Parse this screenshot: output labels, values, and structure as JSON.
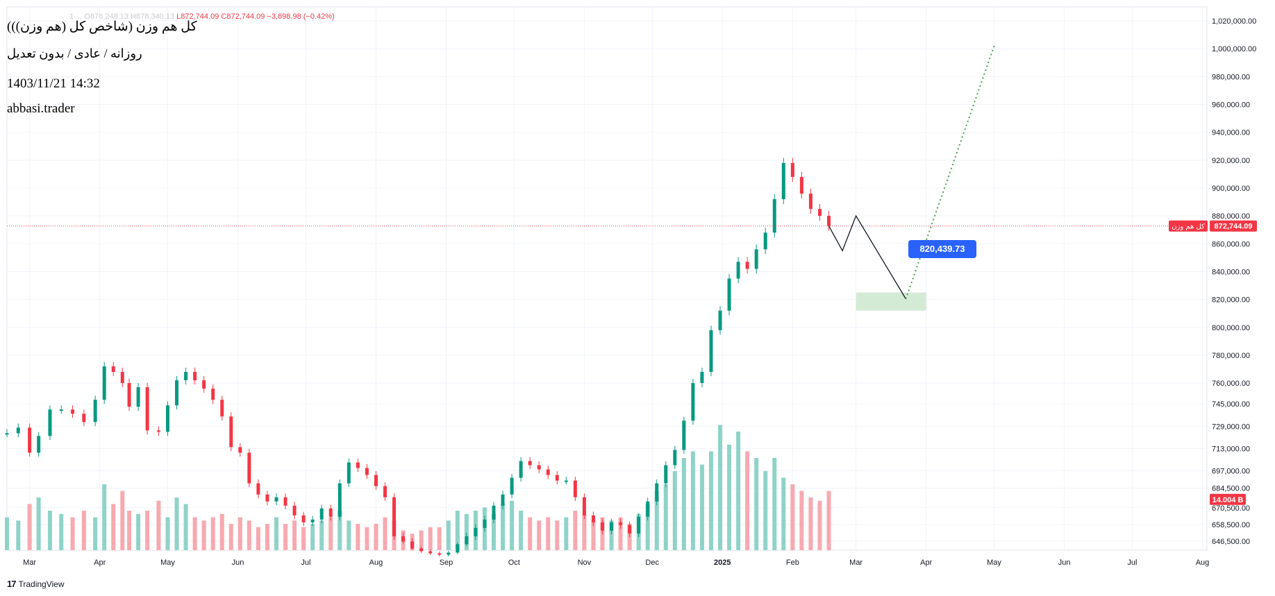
{
  "legend": {
    "symbol_faded": "1 ...",
    "open_faded": "O876,248.13",
    "high_faded": "H878,340.13",
    "low": "L872,744.09",
    "close": "C872,744.09",
    "change": "−3,698.98 (−0.42%)"
  },
  "title": "(کل هم وزن (شاخص کل (هم وزن))",
  "subtitle": "روزانه / عادی / بدون تعدیل",
  "timestamp": "1403/11/21 14:32",
  "author": "abbasi.trader",
  "attribution": "TradingView",
  "colors": {
    "up": "#089981",
    "down": "#f23645",
    "vol_up": "#8fd3c8",
    "vol_down": "#f7a9b0",
    "projection": "#2962ff",
    "zone": "#c8e6c9"
  },
  "chart_data": {
    "type": "candlestick",
    "symbol_label": "کل هم وزن",
    "current_price": "872,744.09",
    "volume_label": "14.004 B",
    "target_label": "820,439.73",
    "y_ticks": [
      646500,
      658500,
      670500,
      684500,
      697000,
      713000,
      729000,
      745000,
      760000,
      780000,
      800000,
      820000,
      840000,
      860000,
      880000,
      900000,
      920000,
      940000,
      960000,
      980000,
      1000000,
      1020000
    ],
    "y_tick_labels": [
      "646,500.00",
      "658,500.00",
      "670,500.00",
      "684,500.00",
      "697,000.00",
      "713,000.00",
      "729,000.00",
      "745,000.00",
      "760,000.00",
      "780,000.00",
      "800,000.00",
      "820,000.00",
      "840,000.00",
      "860,000.00",
      "880,000.00",
      "900,000.00",
      "920,000.00",
      "940,000.00",
      "960,000.00",
      "980,000.00",
      "1,000,000.00",
      "1,020,000.00"
    ],
    "x_labels": [
      "Mar",
      "Apr",
      "May",
      "Jun",
      "Jul",
      "Aug",
      "Sep",
      "Oct",
      "Nov",
      "Dec",
      "2025",
      "Feb",
      "Mar",
      "Apr",
      "May",
      "Jun",
      "Jul",
      "Aug"
    ],
    "x_label_dates": [
      "2024-03-01",
      "2024-04-01",
      "2024-05-01",
      "2024-06-01",
      "2024-07-01",
      "2024-08-01",
      "2024-09-01",
      "2024-10-01",
      "2024-11-01",
      "2024-12-01",
      "2025-01-01",
      "2025-02-01",
      "2025-03-01",
      "2025-04-01",
      "2025-05-01",
      "2025-06-01",
      "2025-07-01",
      "2025-08-01"
    ],
    "x_range": [
      "2024-02-20",
      "2025-08-03"
    ],
    "close_series": [
      [
        "2024-02-20",
        724000
      ],
      [
        "2024-02-25",
        728000
      ],
      [
        "2024-03-01",
        710000
      ],
      [
        "2024-03-05",
        722000
      ],
      [
        "2024-03-10",
        741000
      ],
      [
        "2024-03-15",
        741000
      ],
      [
        "2024-03-20",
        738000
      ],
      [
        "2024-03-25",
        732000
      ],
      [
        "2024-03-30",
        748000
      ],
      [
        "2024-04-03",
        772000
      ],
      [
        "2024-04-07",
        768000
      ],
      [
        "2024-04-11",
        760000
      ],
      [
        "2024-04-14",
        743000
      ],
      [
        "2024-04-18",
        757000
      ],
      [
        "2024-04-22",
        726000
      ],
      [
        "2024-04-27",
        725000
      ],
      [
        "2024-05-01",
        744000
      ],
      [
        "2024-05-05",
        762000
      ],
      [
        "2024-05-09",
        768000
      ],
      [
        "2024-05-13",
        762000
      ],
      [
        "2024-05-17",
        756000
      ],
      [
        "2024-05-21",
        748000
      ],
      [
        "2024-05-25",
        736000
      ],
      [
        "2024-05-29",
        714000
      ],
      [
        "2024-06-02",
        710000
      ],
      [
        "2024-06-06",
        688000
      ],
      [
        "2024-06-10",
        680000
      ],
      [
        "2024-06-14",
        675000
      ],
      [
        "2024-06-18",
        678000
      ],
      [
        "2024-06-22",
        672000
      ],
      [
        "2024-06-26",
        665000
      ],
      [
        "2024-06-30",
        660000
      ],
      [
        "2024-07-04",
        662000
      ],
      [
        "2024-07-08",
        670000
      ],
      [
        "2024-07-12",
        664000
      ],
      [
        "2024-07-16",
        688000
      ],
      [
        "2024-07-20",
        703000
      ],
      [
        "2024-07-24",
        699000
      ],
      [
        "2024-07-28",
        694000
      ],
      [
        "2024-08-01",
        686000
      ],
      [
        "2024-08-05",
        678000
      ],
      [
        "2024-08-09",
        650000
      ],
      [
        "2024-08-13",
        646000
      ],
      [
        "2024-08-17",
        636000
      ],
      [
        "2024-08-21",
        632000
      ],
      [
        "2024-08-25",
        629000
      ],
      [
        "2024-08-29",
        627000
      ],
      [
        "2024-09-02",
        630000
      ],
      [
        "2024-09-06",
        642000
      ],
      [
        "2024-09-10",
        650000
      ],
      [
        "2024-09-14",
        656000
      ],
      [
        "2024-09-18",
        662000
      ],
      [
        "2024-09-22",
        672000
      ],
      [
        "2024-09-26",
        680000
      ],
      [
        "2024-09-30",
        692000
      ],
      [
        "2024-10-04",
        704000
      ],
      [
        "2024-10-08",
        701000
      ],
      [
        "2024-10-12",
        698000
      ],
      [
        "2024-10-16",
        694000
      ],
      [
        "2024-10-20",
        690000
      ],
      [
        "2024-10-24",
        690000
      ],
      [
        "2024-10-28",
        678000
      ],
      [
        "2024-11-01",
        665000
      ],
      [
        "2024-11-05",
        660000
      ],
      [
        "2024-11-09",
        654000
      ],
      [
        "2024-11-13",
        660000
      ],
      [
        "2024-11-17",
        658000
      ],
      [
        "2024-11-21",
        652000
      ],
      [
        "2024-11-25",
        664000
      ],
      [
        "2024-11-29",
        675000
      ],
      [
        "2024-12-03",
        688000
      ],
      [
        "2024-12-07",
        701000
      ],
      [
        "2024-12-11",
        712000
      ],
      [
        "2024-12-15",
        733000
      ],
      [
        "2024-12-19",
        760000
      ],
      [
        "2024-12-23",
        768000
      ],
      [
        "2024-12-27",
        798000
      ],
      [
        "2024-12-31",
        812000
      ],
      [
        "2025-01-04",
        835000
      ],
      [
        "2025-01-08",
        847000
      ],
      [
        "2025-01-12",
        842000
      ],
      [
        "2025-01-16",
        856000
      ],
      [
        "2025-01-20",
        868000
      ],
      [
        "2025-01-24",
        892000
      ],
      [
        "2025-01-28",
        918000
      ],
      [
        "2025-02-01",
        908000
      ],
      [
        "2025-02-05",
        896000
      ],
      [
        "2025-02-09",
        885000
      ],
      [
        "2025-02-13",
        880000
      ],
      [
        "2025-02-17",
        872744
      ]
    ],
    "volume_series": [
      [
        "2024-02-20",
        0.5
      ],
      [
        "2024-02-25",
        0.45
      ],
      [
        "2024-03-01",
        0.7
      ],
      [
        "2024-03-05",
        0.8
      ],
      [
        "2024-03-10",
        0.6
      ],
      [
        "2024-03-15",
        0.55
      ],
      [
        "2024-03-20",
        0.5
      ],
      [
        "2024-03-25",
        0.6
      ],
      [
        "2024-03-30",
        0.5
      ],
      [
        "2024-04-03",
        1.0
      ],
      [
        "2024-04-07",
        0.7
      ],
      [
        "2024-04-11",
        0.9
      ],
      [
        "2024-04-14",
        0.6
      ],
      [
        "2024-04-18",
        0.55
      ],
      [
        "2024-04-22",
        0.6
      ],
      [
        "2024-04-27",
        0.75
      ],
      [
        "2024-05-01",
        0.5
      ],
      [
        "2024-05-05",
        0.8
      ],
      [
        "2024-05-09",
        0.7
      ],
      [
        "2024-05-13",
        0.5
      ],
      [
        "2024-05-17",
        0.45
      ],
      [
        "2024-05-21",
        0.5
      ],
      [
        "2024-05-25",
        0.55
      ],
      [
        "2024-05-29",
        0.4
      ],
      [
        "2024-06-02",
        0.5
      ],
      [
        "2024-06-06",
        0.45
      ],
      [
        "2024-06-10",
        0.35
      ],
      [
        "2024-06-14",
        0.4
      ],
      [
        "2024-06-18",
        0.5
      ],
      [
        "2024-06-22",
        0.4
      ],
      [
        "2024-06-26",
        0.45
      ],
      [
        "2024-06-30",
        0.35
      ],
      [
        "2024-07-04",
        0.4
      ],
      [
        "2024-07-08",
        0.45
      ],
      [
        "2024-07-12",
        0.5
      ],
      [
        "2024-07-16",
        0.6
      ],
      [
        "2024-07-20",
        0.45
      ],
      [
        "2024-07-24",
        0.4
      ],
      [
        "2024-07-28",
        0.35
      ],
      [
        "2024-08-01",
        0.4
      ],
      [
        "2024-08-05",
        0.5
      ],
      [
        "2024-08-09",
        0.45
      ],
      [
        "2024-08-13",
        0.3
      ],
      [
        "2024-08-17",
        0.25
      ],
      [
        "2024-08-21",
        0.3
      ],
      [
        "2024-08-25",
        0.35
      ],
      [
        "2024-08-29",
        0.35
      ],
      [
        "2024-09-02",
        0.45
      ],
      [
        "2024-09-06",
        0.6
      ],
      [
        "2024-09-10",
        0.55
      ],
      [
        "2024-09-14",
        0.6
      ],
      [
        "2024-09-18",
        0.65
      ],
      [
        "2024-09-22",
        0.55
      ],
      [
        "2024-09-26",
        0.7
      ],
      [
        "2024-09-30",
        0.75
      ],
      [
        "2024-10-04",
        0.6
      ],
      [
        "2024-10-08",
        0.5
      ],
      [
        "2024-10-12",
        0.45
      ],
      [
        "2024-10-16",
        0.5
      ],
      [
        "2024-10-20",
        0.45
      ],
      [
        "2024-10-24",
        0.5
      ],
      [
        "2024-10-28",
        0.6
      ],
      [
        "2024-11-01",
        0.55
      ],
      [
        "2024-11-05",
        0.45
      ],
      [
        "2024-11-09",
        0.5
      ],
      [
        "2024-11-13",
        0.45
      ],
      [
        "2024-11-17",
        0.5
      ],
      [
        "2024-11-21",
        0.4
      ],
      [
        "2024-11-25",
        0.55
      ],
      [
        "2024-11-29",
        0.7
      ],
      [
        "2024-12-03",
        0.9
      ],
      [
        "2024-12-07",
        1.0
      ],
      [
        "2024-12-11",
        1.2
      ],
      [
        "2024-12-15",
        1.4
      ],
      [
        "2024-12-19",
        1.5
      ],
      [
        "2024-12-23",
        1.3
      ],
      [
        "2024-12-27",
        1.5
      ],
      [
        "2024-12-31",
        1.9
      ],
      [
        "2025-01-04",
        1.6
      ],
      [
        "2025-01-08",
        1.8
      ],
      [
        "2025-01-12",
        1.5
      ],
      [
        "2025-01-16",
        1.4
      ],
      [
        "2025-01-20",
        1.2
      ],
      [
        "2025-01-24",
        1.4
      ],
      [
        "2025-01-28",
        1.1
      ],
      [
        "2025-02-01",
        1.0
      ],
      [
        "2025-02-05",
        0.9
      ],
      [
        "2025-02-09",
        0.8
      ],
      [
        "2025-02-13",
        0.75
      ],
      [
        "2025-02-17",
        0.9
      ]
    ],
    "projection_path": [
      [
        "2025-02-17",
        872744
      ],
      [
        "2025-02-23",
        855000
      ],
      [
        "2025-03-01",
        880000
      ],
      [
        "2025-03-23",
        820440
      ]
    ],
    "target_path": [
      [
        "2025-03-23",
        820440
      ],
      [
        "2025-05-01",
        1002000
      ]
    ],
    "target_zone": {
      "x0": "2025-03-01",
      "x1": "2025-04-01",
      "y0": 812000,
      "y1": 825000
    }
  }
}
